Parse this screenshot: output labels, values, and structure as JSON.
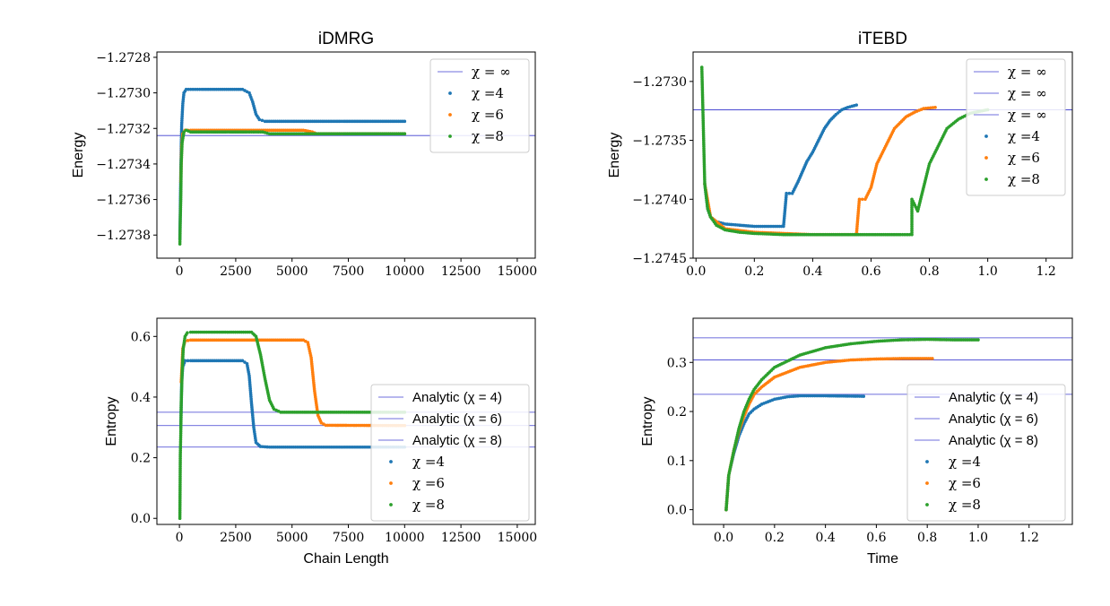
{
  "colors": {
    "blue": "#1f77b4",
    "orange": "#ff7f0e",
    "green": "#2ca02c",
    "ref_line": "#3f3fd0",
    "frame": "#000000"
  },
  "chart_data": [
    {
      "id": "idmrg-energy",
      "type": "scatter",
      "title": "iDMRG",
      "xlabel": "",
      "ylabel": "Energy",
      "xlim": [
        -1000,
        15800
      ],
      "ylim": [
        -1.27393,
        -1.27277
      ],
      "xticks": [
        0,
        2500,
        5000,
        7500,
        10000,
        12500,
        15000
      ],
      "xtick_labels": [
        "0",
        "2500",
        "5000",
        "7500",
        "10000",
        "12500",
        "15000"
      ],
      "yticks": [
        -1.2738,
        -1.2736,
        -1.2734,
        -1.2732,
        -1.273,
        -1.2728
      ],
      "ytick_labels": [
        "−1.2738",
        "−1.2736",
        "−1.2734",
        "−1.2732",
        "−1.2730",
        "−1.2728"
      ],
      "hlines": [
        {
          "label": "χ = ∞",
          "y": -1.27324
        }
      ],
      "legend_position": "top-right",
      "series": [
        {
          "name": "χ =4",
          "color_key": "blue",
          "points": [
            [
              20,
              -1.27382
            ],
            [
              40,
              -1.27365
            ],
            [
              60,
              -1.27345
            ],
            [
              80,
              -1.2733
            ],
            [
              100,
              -1.27318
            ],
            [
              150,
              -1.27306
            ],
            [
              200,
              -1.273
            ],
            [
              300,
              -1.27298
            ],
            [
              500,
              -1.27298
            ],
            [
              1000,
              -1.27298
            ],
            [
              2000,
              -1.27298
            ],
            [
              2800,
              -1.27298
            ],
            [
              3100,
              -1.273
            ],
            [
              3250,
              -1.27305
            ],
            [
              3400,
              -1.27312
            ],
            [
              3550,
              -1.27315
            ],
            [
              3800,
              -1.27316
            ],
            [
              5000,
              -1.27316
            ],
            [
              7000,
              -1.27316
            ],
            [
              10000,
              -1.27316
            ]
          ]
        },
        {
          "name": "χ =6",
          "color_key": "orange",
          "points": [
            [
              60,
              -1.2735
            ],
            [
              100,
              -1.2733
            ],
            [
              150,
              -1.27323
            ],
            [
              250,
              -1.27321
            ],
            [
              500,
              -1.27321
            ],
            [
              2000,
              -1.27321
            ],
            [
              4000,
              -1.27321
            ],
            [
              5500,
              -1.27321
            ],
            [
              5900,
              -1.27322
            ],
            [
              6100,
              -1.27323
            ],
            [
              6400,
              -1.27323
            ],
            [
              8000,
              -1.27323
            ],
            [
              10000,
              -1.27323
            ]
          ]
        },
        {
          "name": "χ =8",
          "color_key": "green",
          "points": [
            [
              20,
              -1.27385
            ],
            [
              40,
              -1.2737
            ],
            [
              60,
              -1.2736
            ],
            [
              80,
              -1.2734
            ],
            [
              120,
              -1.27328
            ],
            [
              200,
              -1.27322
            ],
            [
              300,
              -1.27321
            ],
            [
              500,
              -1.27322
            ],
            [
              1500,
              -1.27322
            ],
            [
              3000,
              -1.27322
            ],
            [
              3700,
              -1.27322
            ],
            [
              4000,
              -1.27323
            ],
            [
              5000,
              -1.27323
            ],
            [
              7000,
              -1.27323
            ],
            [
              10000,
              -1.27323
            ]
          ]
        }
      ]
    },
    {
      "id": "itebd-energy",
      "type": "scatter",
      "title": "iTEBD",
      "xlabel": "",
      "ylabel": "Energy",
      "xlim": [
        -0.01,
        1.29
      ],
      "ylim": [
        -1.2745,
        -1.27275
      ],
      "xticks": [
        0,
        0.2,
        0.4,
        0.6,
        0.8,
        1.0,
        1.2
      ],
      "xtick_labels": [
        "0.0",
        "0.2",
        "0.4",
        "0.6",
        "0.8",
        "1.0",
        "1.2"
      ],
      "yticks": [
        -1.2745,
        -1.274,
        -1.2735,
        -1.273
      ],
      "ytick_labels": [
        "−1.2745",
        "−1.2740",
        "−1.2735",
        "−1.2730"
      ],
      "hlines": [
        {
          "label": "χ = ∞",
          "y": -1.27324
        },
        {
          "label": "χ = ∞",
          "y": -1.27324
        },
        {
          "label": "χ = ∞",
          "y": -1.27324
        }
      ],
      "legend_position": "top-right",
      "series": [
        {
          "name": "χ =4",
          "color_key": "blue",
          "points": [
            [
              0.03,
              -1.27387
            ],
            [
              0.04,
              -1.27408
            ],
            [
              0.05,
              -1.27415
            ],
            [
              0.07,
              -1.27419
            ],
            [
              0.1,
              -1.27421
            ],
            [
              0.15,
              -1.27422
            ],
            [
              0.2,
              -1.27423
            ],
            [
              0.25,
              -1.27423
            ],
            [
              0.3,
              -1.27423
            ],
            [
              0.31,
              -1.27395
            ],
            [
              0.33,
              -1.27395
            ],
            [
              0.35,
              -1.27385
            ],
            [
              0.38,
              -1.27368
            ],
            [
              0.4,
              -1.2736
            ],
            [
              0.42,
              -1.2735
            ],
            [
              0.44,
              -1.2734
            ],
            [
              0.46,
              -1.27333
            ],
            [
              0.48,
              -1.27328
            ],
            [
              0.5,
              -1.27324
            ],
            [
              0.52,
              -1.27322
            ],
            [
              0.55,
              -1.2732
            ]
          ]
        },
        {
          "name": "χ =6",
          "color_key": "orange",
          "points": [
            [
              0.03,
              -1.27387
            ],
            [
              0.05,
              -1.27415
            ],
            [
              0.1,
              -1.27425
            ],
            [
              0.2,
              -1.27428
            ],
            [
              0.3,
              -1.27429
            ],
            [
              0.4,
              -1.2743
            ],
            [
              0.5,
              -1.2743
            ],
            [
              0.55,
              -1.2743
            ],
            [
              0.56,
              -1.274
            ],
            [
              0.58,
              -1.274
            ],
            [
              0.6,
              -1.2739
            ],
            [
              0.62,
              -1.2737
            ],
            [
              0.64,
              -1.2736
            ],
            [
              0.66,
              -1.2735
            ],
            [
              0.68,
              -1.2734
            ],
            [
              0.7,
              -1.27335
            ],
            [
              0.72,
              -1.2733
            ],
            [
              0.75,
              -1.27326
            ],
            [
              0.78,
              -1.27323
            ],
            [
              0.82,
              -1.27322
            ]
          ]
        },
        {
          "name": "χ =8",
          "color_key": "green",
          "points": [
            [
              0.02,
              -1.27288
            ],
            [
              0.03,
              -1.27387
            ],
            [
              0.04,
              -1.27408
            ],
            [
              0.05,
              -1.27415
            ],
            [
              0.07,
              -1.27422
            ],
            [
              0.1,
              -1.27426
            ],
            [
              0.15,
              -1.27428
            ],
            [
              0.2,
              -1.27429
            ],
            [
              0.3,
              -1.2743
            ],
            [
              0.4,
              -1.2743
            ],
            [
              0.5,
              -1.2743
            ],
            [
              0.6,
              -1.2743
            ],
            [
              0.7,
              -1.2743
            ],
            [
              0.74,
              -1.2743
            ],
            [
              0.74,
              -1.274
            ],
            [
              0.76,
              -1.2741
            ],
            [
              0.78,
              -1.2739
            ],
            [
              0.8,
              -1.2737
            ],
            [
              0.82,
              -1.2736
            ],
            [
              0.84,
              -1.2735
            ],
            [
              0.86,
              -1.2734
            ],
            [
              0.9,
              -1.27332
            ],
            [
              0.94,
              -1.27327
            ],
            [
              1.0,
              -1.27324
            ]
          ]
        }
      ]
    },
    {
      "id": "idmrg-entropy",
      "type": "scatter",
      "title": "",
      "xlabel": "Chain Length",
      "ylabel": "Entropy",
      "xlim": [
        -1000,
        15800
      ],
      "ylim": [
        -0.02,
        0.66
      ],
      "xticks": [
        0,
        2500,
        5000,
        7500,
        10000,
        12500,
        15000
      ],
      "xtick_labels": [
        "0",
        "2500",
        "5000",
        "7500",
        "10000",
        "12500",
        "15000"
      ],
      "yticks": [
        0,
        0.2,
        0.4,
        0.6
      ],
      "ytick_labels": [
        "0.0",
        "0.2",
        "0.4",
        "0.6"
      ],
      "hlines": [
        {
          "label": "Analytic (χ = 4)",
          "y": 0.235
        },
        {
          "label": "Analytic (χ = 6)",
          "y": 0.306
        },
        {
          "label": "Analytic (χ = 8)",
          "y": 0.35
        }
      ],
      "legend_position": "center-right",
      "series": [
        {
          "name": "χ =4",
          "color_key": "blue",
          "points": [
            [
              60,
              0.3
            ],
            [
              100,
              0.45
            ],
            [
              150,
              0.5
            ],
            [
              250,
              0.52
            ],
            [
              500,
              0.52
            ],
            [
              2800,
              0.52
            ],
            [
              3000,
              0.51
            ],
            [
              3100,
              0.47
            ],
            [
              3200,
              0.38
            ],
            [
              3300,
              0.3
            ],
            [
              3400,
              0.25
            ],
            [
              3600,
              0.237
            ],
            [
              4000,
              0.235
            ],
            [
              10000,
              0.235
            ]
          ]
        },
        {
          "name": "χ =6",
          "color_key": "orange",
          "points": [
            [
              80,
              0.45
            ],
            [
              150,
              0.56
            ],
            [
              250,
              0.585
            ],
            [
              500,
              0.588
            ],
            [
              5500,
              0.588
            ],
            [
              5700,
              0.58
            ],
            [
              5850,
              0.53
            ],
            [
              6000,
              0.42
            ],
            [
              6150,
              0.34
            ],
            [
              6300,
              0.315
            ],
            [
              6500,
              0.307
            ],
            [
              10000,
              0.306
            ]
          ]
        },
        {
          "name": "χ =8",
          "color_key": "green",
          "points": [
            [
              20,
              0.0
            ],
            [
              40,
              0.21
            ],
            [
              60,
              0.28
            ],
            [
              80,
              0.38
            ],
            [
              120,
              0.48
            ],
            [
              170,
              0.56
            ],
            [
              250,
              0.6
            ],
            [
              350,
              0.612
            ],
            [
              500,
              0.614
            ],
            [
              3200,
              0.614
            ],
            [
              3400,
              0.6
            ],
            [
              3600,
              0.54
            ],
            [
              3800,
              0.46
            ],
            [
              4000,
              0.39
            ],
            [
              4200,
              0.36
            ],
            [
              4500,
              0.35
            ],
            [
              10000,
              0.35
            ]
          ]
        }
      ]
    },
    {
      "id": "itebd-entropy",
      "type": "scatter",
      "title": "",
      "xlabel": "Time",
      "ylabel": "Entropy",
      "xlim": [
        -0.12,
        1.37
      ],
      "ylim": [
        -0.03,
        0.39
      ],
      "xticks": [
        0,
        0.2,
        0.4,
        0.6,
        0.8,
        1.0,
        1.2
      ],
      "xtick_labels": [
        "0.0",
        "0.2",
        "0.4",
        "0.6",
        "0.8",
        "1.0",
        "1.2"
      ],
      "yticks": [
        0,
        0.1,
        0.2,
        0.3
      ],
      "ytick_labels": [
        "0.0",
        "0.1",
        "0.2",
        "0.3"
      ],
      "hlines": [
        {
          "label": "Analytic (χ = 4)",
          "y": 0.235
        },
        {
          "label": "Analytic (χ = 6)",
          "y": 0.305
        },
        {
          "label": "Analytic (χ = 8)",
          "y": 0.35
        }
      ],
      "legend_position": "lower-right",
      "series": [
        {
          "name": "χ =4",
          "color_key": "blue",
          "points": [
            [
              0.01,
              0.0
            ],
            [
              0.02,
              0.07
            ],
            [
              0.04,
              0.115
            ],
            [
              0.06,
              0.15
            ],
            [
              0.08,
              0.175
            ],
            [
              0.1,
              0.195
            ],
            [
              0.12,
              0.205
            ],
            [
              0.15,
              0.215
            ],
            [
              0.2,
              0.225
            ],
            [
              0.25,
              0.23
            ],
            [
              0.3,
              0.232
            ],
            [
              0.4,
              0.232
            ],
            [
              0.55,
              0.231
            ]
          ]
        },
        {
          "name": "χ =6",
          "color_key": "orange",
          "points": [
            [
              0.01,
              0.0
            ],
            [
              0.02,
              0.07
            ],
            [
              0.04,
              0.12
            ],
            [
              0.06,
              0.16
            ],
            [
              0.08,
              0.19
            ],
            [
              0.1,
              0.215
            ],
            [
              0.12,
              0.235
            ],
            [
              0.15,
              0.25
            ],
            [
              0.2,
              0.27
            ],
            [
              0.3,
              0.29
            ],
            [
              0.4,
              0.3
            ],
            [
              0.5,
              0.305
            ],
            [
              0.6,
              0.307
            ],
            [
              0.7,
              0.308
            ],
            [
              0.82,
              0.308
            ]
          ]
        },
        {
          "name": "χ =8",
          "color_key": "green",
          "points": [
            [
              0.01,
              0.0
            ],
            [
              0.02,
              0.07
            ],
            [
              0.04,
              0.12
            ],
            [
              0.06,
              0.165
            ],
            [
              0.08,
              0.2
            ],
            [
              0.1,
              0.225
            ],
            [
              0.12,
              0.245
            ],
            [
              0.15,
              0.265
            ],
            [
              0.2,
              0.29
            ],
            [
              0.3,
              0.315
            ],
            [
              0.4,
              0.33
            ],
            [
              0.5,
              0.338
            ],
            [
              0.6,
              0.343
            ],
            [
              0.7,
              0.346
            ],
            [
              0.8,
              0.347
            ],
            [
              0.9,
              0.346
            ],
            [
              1.0,
              0.346
            ]
          ]
        }
      ]
    }
  ]
}
